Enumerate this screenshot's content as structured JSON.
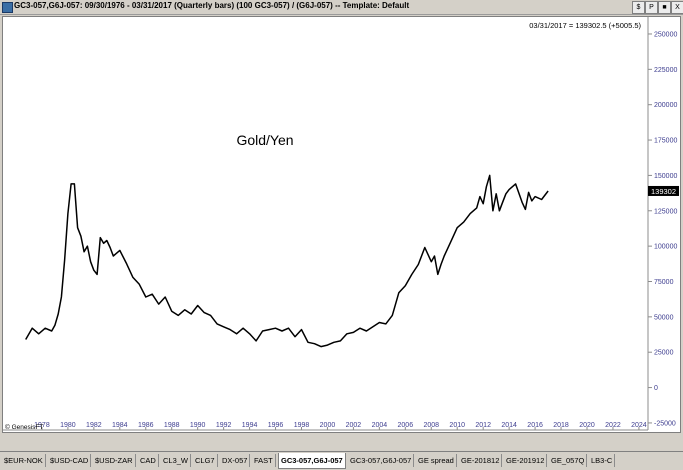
{
  "window": {
    "title": "GC3-057,G6J-057:  09/30/1976 - 03/31/2017  (Quarterly bars)  (100 GC3-057) / (G6J-057)  --  Template: Default",
    "buttons": [
      "$",
      "P",
      "■",
      "X"
    ]
  },
  "chart_data": {
    "type": "line",
    "title": "Gold/Yen",
    "status_readout": "03/31/2017 = 139302.5 (+5005.5)",
    "last_value_label": "139302",
    "copyright": "© GenesisFT",
    "xlim": [
      1975.0,
      2024.7
    ],
    "ylim": [
      -30000,
      262000
    ],
    "y_ticks": [
      -25000,
      0,
      25000,
      50000,
      75000,
      100000,
      125000,
      150000,
      175000,
      200000,
      225000,
      250000
    ],
    "x_ticks": [
      "1978",
      "1980",
      "1982",
      "1984",
      "1986",
      "1988",
      "1990",
      "1992",
      "1994",
      "1996",
      "1998",
      "2000",
      "2002",
      "2004",
      "2006",
      "2008",
      "2010",
      "2012",
      "2014",
      "2016",
      "2018",
      "2020",
      "2022",
      "2024"
    ],
    "series": [
      {
        "color": "#000000",
        "x": [
          1976.75,
          1977.25,
          1977.75,
          1978.25,
          1978.75,
          1979.0,
          1979.25,
          1979.5,
          1979.75,
          1980.0,
          1980.25,
          1980.5,
          1980.75,
          1981.0,
          1981.25,
          1981.5,
          1981.75,
          1982.0,
          1982.25,
          1982.5,
          1982.75,
          1983.0,
          1983.25,
          1983.5,
          1984.0,
          1984.5,
          1985.0,
          1985.5,
          1986.0,
          1986.5,
          1987.0,
          1987.5,
          1988.0,
          1988.5,
          1989.0,
          1989.5,
          1990.0,
          1990.5,
          1991.0,
          1991.5,
          1992.0,
          1992.5,
          1993.0,
          1993.5,
          1994.0,
          1994.5,
          1995.0,
          1995.5,
          1996.0,
          1996.5,
          1997.0,
          1997.5,
          1998.0,
          1998.5,
          1999.0,
          1999.5,
          2000.0,
          2000.5,
          2001.0,
          2001.5,
          2002.0,
          2002.5,
          2003.0,
          2003.5,
          2004.0,
          2004.5,
          2005.0,
          2005.5,
          2006.0,
          2006.5,
          2007.0,
          2007.5,
          2008.0,
          2008.25,
          2008.5,
          2008.75,
          2009.0,
          2009.5,
          2010.0,
          2010.5,
          2011.0,
          2011.5,
          2011.75,
          2012.0,
          2012.25,
          2012.5,
          2012.75,
          2013.0,
          2013.25,
          2013.5,
          2013.75,
          2014.0,
          2014.5,
          2015.0,
          2015.25,
          2015.5,
          2015.75,
          2016.0,
          2016.5,
          2017.0
        ],
        "values": [
          34000,
          42000,
          38000,
          42000,
          40000,
          44000,
          52000,
          64000,
          90000,
          123000,
          144000,
          144000,
          113000,
          107000,
          96000,
          100000,
          89000,
          83000,
          80000,
          106000,
          102000,
          104000,
          99000,
          93000,
          97000,
          88000,
          78000,
          73000,
          64000,
          66000,
          59000,
          64000,
          54000,
          51000,
          55000,
          52000,
          58000,
          53000,
          51000,
          45000,
          43000,
          41000,
          38000,
          42000,
          38000,
          33000,
          40000,
          41000,
          42000,
          40000,
          42000,
          36000,
          41000,
          32000,
          31000,
          29000,
          30000,
          32000,
          33000,
          38000,
          39000,
          42000,
          40000,
          43000,
          46000,
          45000,
          51000,
          67000,
          72000,
          80000,
          87000,
          99000,
          89000,
          93000,
          80000,
          87000,
          93000,
          103000,
          113000,
          117000,
          123000,
          127000,
          135000,
          130000,
          142000,
          150000,
          125000,
          137000,
          125000,
          131000,
          137000,
          140000,
          144000,
          131000,
          126000,
          138000,
          132000,
          135000,
          133000,
          139000
        ]
      }
    ]
  },
  "tabs": [
    "$EUR-NOK",
    "$USD-CAD",
    "$USD-ZAR",
    "CAD",
    "CL3_W",
    "CLG7",
    "DX-057",
    "FAST",
    "GC3-057,G6J-057",
    "GC3-057,G6J-057",
    "GE spread",
    "GE-201812",
    "GE-201912",
    "GE_057Q",
    "LB3-C"
  ],
  "active_tab_index": 8
}
